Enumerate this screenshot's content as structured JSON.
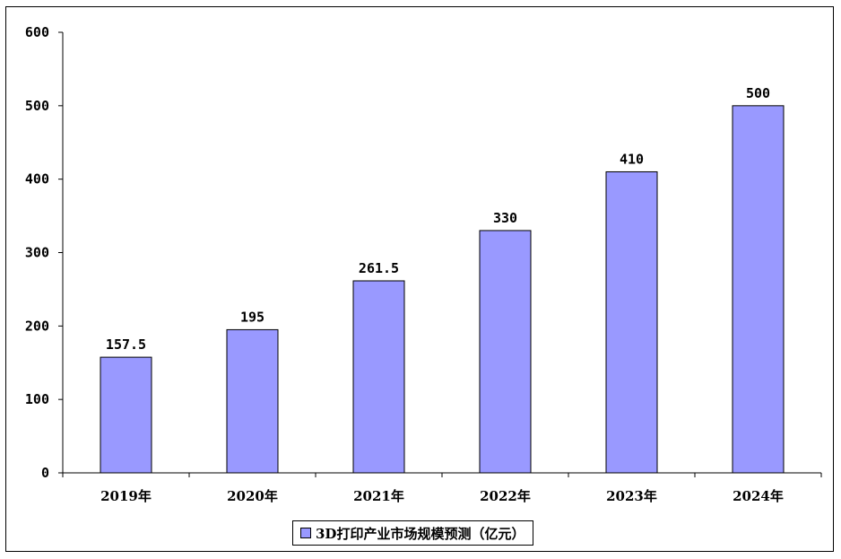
{
  "chart_data": {
    "type": "bar",
    "categories": [
      "2019年",
      "2020年",
      "2021年",
      "2022年",
      "2023年",
      "2024年"
    ],
    "series": [
      {
        "name": "3D打印产业市场规模预测（亿元）",
        "values": [
          157.5,
          195,
          261.5,
          330,
          410,
          500
        ],
        "data_labels": [
          "157.5",
          "195",
          "261.5",
          "330",
          "410",
          "500"
        ],
        "color": "#9999ff"
      }
    ],
    "ylim": [
      0,
      600
    ],
    "yticks": [
      0,
      100,
      200,
      300,
      400,
      500,
      600
    ],
    "grid": false,
    "legend_position": "bottom"
  }
}
